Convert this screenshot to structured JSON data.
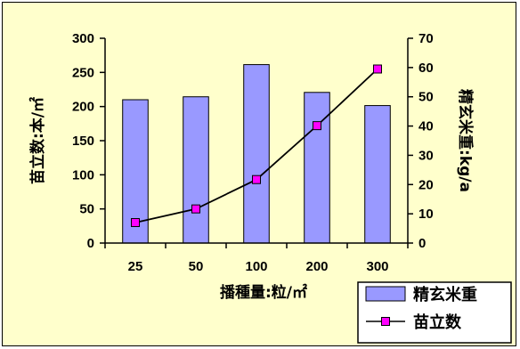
{
  "chart_data": {
    "type": "bar",
    "categories": [
      "25",
      "50",
      "100",
      "200",
      "300"
    ],
    "series": [
      {
        "name": "精玄米重",
        "type": "bar",
        "axis": "right",
        "values": [
          49,
          50,
          61,
          51.5,
          47
        ]
      },
      {
        "name": "苗立数",
        "type": "line",
        "axis": "left",
        "values": [
          30,
          50,
          93,
          172,
          255
        ]
      }
    ],
    "y_left": {
      "label": "苗立数:本/㎡",
      "min": 0,
      "max": 300,
      "ticks": [
        "0",
        "50",
        "100",
        "150",
        "200",
        "250",
        "300"
      ]
    },
    "y_right": {
      "label": "精玄米重:kg/a",
      "min": 0,
      "max": 70,
      "ticks": [
        "0",
        "10",
        "20",
        "30",
        "40",
        "50",
        "60",
        "70"
      ]
    },
    "xlabel": "播種量:粒/㎡",
    "legend_position": "bottom-right",
    "grid": false,
    "colors": {
      "bar_fill": "#9999ff",
      "bar_stroke": "#000000",
      "line": "#000000",
      "marker_fill": "#ff00ff",
      "background": "#ffffcc"
    }
  }
}
